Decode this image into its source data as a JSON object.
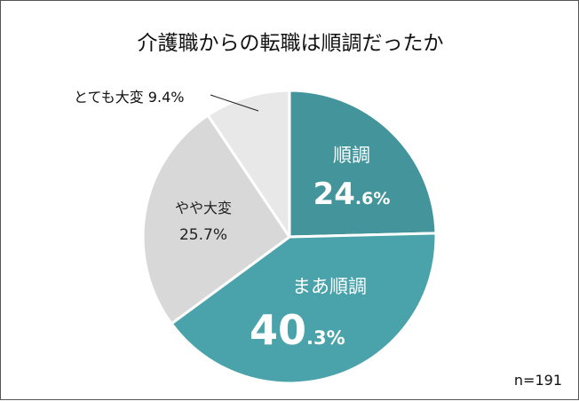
{
  "title": "介護職からの転職は順調だったか",
  "sample_size": "n=191",
  "slices": [
    {
      "label": "順調",
      "value_int": "24",
      "value_dec": ".6%",
      "value": 24.6,
      "color": "#43949b"
    },
    {
      "label": "まあ順調",
      "value_int": "40",
      "value_dec": ".3%",
      "value": 40.3,
      "color": "#4aa3aa"
    },
    {
      "label": "やや大変",
      "value_text": "25.7%",
      "value": 25.7,
      "color": "#d8d8d8"
    },
    {
      "label": "とても大変",
      "value_text": "9.4%",
      "callout": "とても大変 9.4%",
      "value": 9.4,
      "color": "#e8e8e8"
    }
  ],
  "chart_data": {
    "type": "pie",
    "title": "介護職からの転職は順調だったか",
    "categories": [
      "順調",
      "まあ順調",
      "やや大変",
      "とても大変"
    ],
    "values": [
      24.6,
      40.3,
      25.7,
      9.4
    ],
    "unit": "%",
    "colors": [
      "#43949b",
      "#4aa3aa",
      "#d8d8d8",
      "#e8e8e8"
    ],
    "start_angle": "12 o'clock",
    "direction": "clockwise",
    "annotations": [
      "n=191"
    ],
    "legend": "none (labels on slices)"
  }
}
